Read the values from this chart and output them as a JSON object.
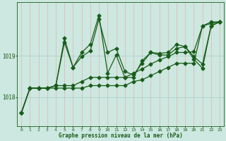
{
  "xlabel": "Graphe pression niveau de la mer (hPa)",
  "background_color": "#cce8e0",
  "vgrid_color": "#e8b0b0",
  "hgrid_color": "#a8ccc8",
  "line_color": "#1a5c1a",
  "hours": [
    0,
    1,
    2,
    3,
    4,
    5,
    6,
    7,
    8,
    9,
    10,
    11,
    12,
    13,
    14,
    15,
    16,
    17,
    18,
    19,
    20,
    21,
    22,
    23
  ],
  "series1": [
    1017.62,
    1018.22,
    1018.22,
    1018.22,
    1018.28,
    1019.32,
    1018.72,
    1018.98,
    1019.12,
    1019.88,
    1019.08,
    1019.18,
    1018.62,
    1018.54,
    1018.82,
    1019.08,
    1019.06,
    1019.08,
    1019.28,
    1019.22,
    1018.98,
    1018.8,
    1019.72,
    1019.82
  ],
  "series2": [
    1017.62,
    1018.22,
    1018.22,
    1018.22,
    1018.28,
    1018.28,
    1018.28,
    1018.38,
    1018.48,
    1018.48,
    1018.48,
    1018.48,
    1018.48,
    1018.58,
    1018.68,
    1018.8,
    1018.9,
    1018.98,
    1019.08,
    1019.08,
    1019.1,
    1019.72,
    1019.78,
    1019.82
  ],
  "series3": [
    1017.62,
    1018.22,
    1018.22,
    1018.22,
    1018.28,
    1019.42,
    1018.72,
    1019.08,
    1019.28,
    1019.98,
    1018.58,
    1019.02,
    1018.48,
    1018.48,
    1018.88,
    1019.08,
    1019.02,
    1019.02,
    1019.18,
    1019.22,
    1018.92,
    1018.7,
    1019.72,
    1019.82
  ],
  "series4": [
    1017.62,
    1018.22,
    1018.22,
    1018.22,
    1018.22,
    1018.22,
    1018.22,
    1018.22,
    1018.28,
    1018.28,
    1018.28,
    1018.28,
    1018.28,
    1018.38,
    1018.42,
    1018.52,
    1018.62,
    1018.72,
    1018.82,
    1018.82,
    1018.82,
    1019.72,
    1019.82,
    1019.82
  ],
  "ylim": [
    1017.3,
    1020.3
  ],
  "yticks": [
    1018,
    1019
  ],
  "marker": "D",
  "markersize": 2.5,
  "linewidth": 0.9
}
